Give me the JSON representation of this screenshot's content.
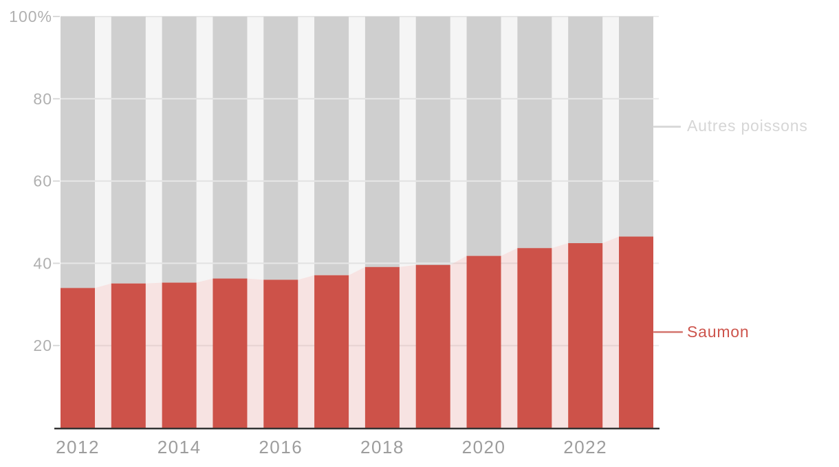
{
  "chart_data": {
    "type": "bar",
    "subtype": "percentage-stacked-columns-with-connector-areas",
    "title": "",
    "xlabel": "",
    "ylabel": "",
    "ylim": [
      0,
      100
    ],
    "grid": true,
    "legend_position": "right",
    "categories": [
      2012,
      2013,
      2014,
      2015,
      2016,
      2017,
      2018,
      2019,
      2020,
      2021,
      2022,
      2023
    ],
    "series": [
      {
        "name": "Saumon",
        "values": [
          34.0,
          35.1,
          35.3,
          36.3,
          36.0,
          37.1,
          39.1,
          39.6,
          41.8,
          43.7,
          44.9,
          46.5
        ],
        "color": "#cd5249",
        "area_fill": "rgba(205,82,73,0.16)",
        "legend_text_color": "#cd544c",
        "legend_line_color": "#da8a84"
      },
      {
        "name": "Autres poissons",
        "values": [
          66.0,
          64.9,
          64.7,
          63.7,
          64.0,
          62.9,
          60.9,
          60.4,
          58.2,
          56.3,
          55.1,
          53.5
        ],
        "color": "#cfcfcf",
        "area_fill": "rgba(0,0,0,0.04)",
        "legend_text_color": "#d6d6d6",
        "legend_line_color": "#d9d9d9"
      }
    ],
    "yticks": [
      {
        "value": 20,
        "label": "20"
      },
      {
        "value": 40,
        "label": "40"
      },
      {
        "value": 60,
        "label": "60"
      },
      {
        "value": 80,
        "label": "80"
      },
      {
        "value": 100,
        "label": "100%"
      }
    ],
    "xticks": [
      {
        "value": 2012,
        "label": "2012"
      },
      {
        "value": 2014,
        "label": "2014"
      },
      {
        "value": 2016,
        "label": "2016"
      },
      {
        "value": 2018,
        "label": "2018"
      },
      {
        "value": 2020,
        "label": "2020"
      },
      {
        "value": 2022,
        "label": "2022"
      }
    ],
    "colors": {
      "background": "#ffffff",
      "axis_line": "#333333",
      "gridline": "#ececec",
      "tick_stub": "#d9d9d9",
      "y_label": "#b0b0b0",
      "x_label": "#9d9d9d",
      "grid_overlay_on_bars": "rgba(255,255,255,0.5)"
    }
  }
}
